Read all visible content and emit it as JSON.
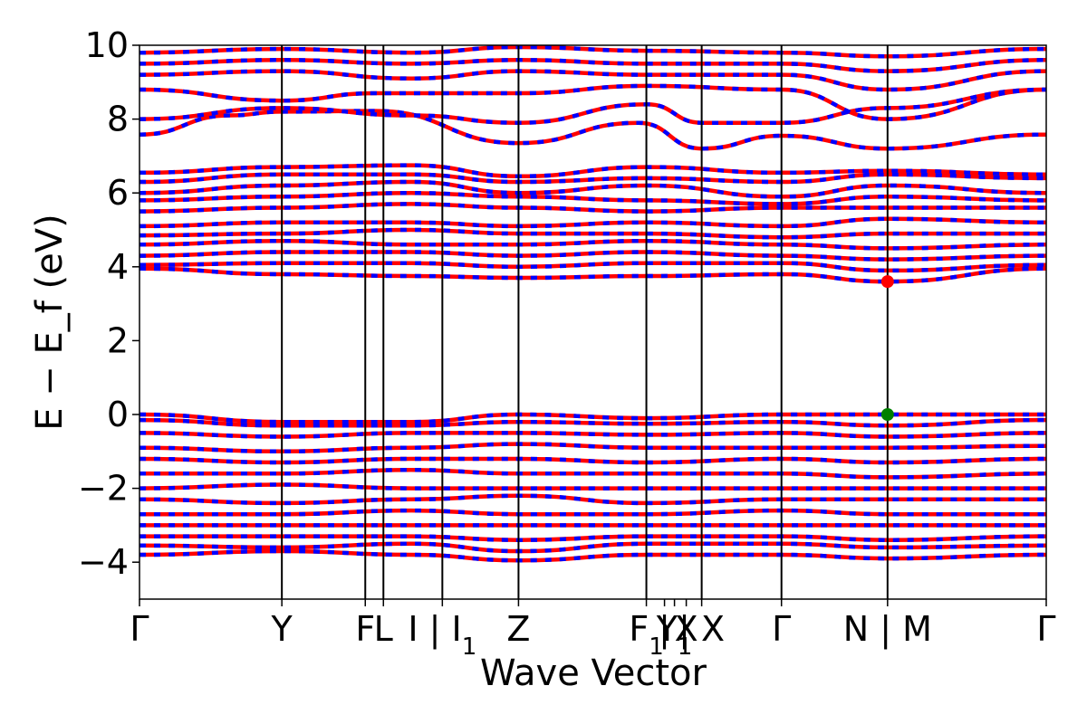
{
  "chart_data": {
    "type": "line",
    "title": "",
    "xlabel": "Wave Vector",
    "ylabel": "E − E_f (eV)",
    "ylim": [
      -5,
      10
    ],
    "yticks": [
      -4,
      -2,
      0,
      2,
      4,
      6,
      8,
      10
    ],
    "ytick_labels": [
      "−4",
      "−2",
      "0",
      "2",
      "4",
      "6",
      "8",
      "10"
    ],
    "xlim": [
      0,
      1
    ],
    "grid": false,
    "kpoints": [
      {
        "pos": 0.0,
        "label": "Γ",
        "sub": ""
      },
      {
        "pos": 0.157,
        "label": "Y",
        "sub": ""
      },
      {
        "pos": 0.249,
        "label": "F",
        "sub": ""
      },
      {
        "pos": 0.269,
        "label": "L",
        "sub": ""
      },
      {
        "pos": 0.334,
        "label": "I | I",
        "sub": "1"
      },
      {
        "pos": 0.418,
        "label": "Z",
        "sub": ""
      },
      {
        "pos": 0.559,
        "label": "F",
        "sub": "1"
      },
      {
        "pos": 0.579,
        "label": "|",
        "sub": ""
      },
      {
        "pos": 0.59,
        "label": "Y",
        "sub": "1"
      },
      {
        "pos": 0.603,
        "label": "X",
        "sub": ""
      },
      {
        "pos": 0.62,
        "label": "| X",
        "sub": ""
      },
      {
        "pos": 0.708,
        "label": "Γ",
        "sub": ""
      },
      {
        "pos": 0.825,
        "label": "N | M",
        "sub": ""
      },
      {
        "pos": 1.0,
        "label": "Γ",
        "sub": ""
      }
    ],
    "vlines": [
      0.157,
      0.249,
      0.269,
      0.334,
      0.418,
      0.559,
      0.62,
      0.708,
      0.825
    ],
    "series": [
      {
        "color": "#ff0000",
        "style": "solid"
      },
      {
        "color": "#0000ff",
        "style": "dashed"
      }
    ],
    "cbm": {
      "x": 0.825,
      "y": 3.6,
      "color": "#ff0000"
    },
    "vbm": {
      "x": 0.825,
      "y": 0.0,
      "color": "#008000"
    },
    "bands": [
      {
        "pts": [
          [
            0,
            7.58
          ],
          [
            0.1,
            8.1
          ],
          [
            0.157,
            8.2
          ],
          [
            0.26,
            8.22
          ],
          [
            0.418,
            7.35
          ],
          [
            0.55,
            7.9
          ],
          [
            0.62,
            7.2
          ],
          [
            0.708,
            7.55
          ],
          [
            0.825,
            7.2
          ],
          [
            1,
            7.58
          ]
        ]
      },
      {
        "pts": [
          [
            0,
            8.0
          ],
          [
            0.157,
            8.3
          ],
          [
            0.3,
            8.1
          ],
          [
            0.418,
            7.9
          ],
          [
            0.56,
            8.4
          ],
          [
            0.62,
            7.9
          ],
          [
            0.708,
            7.9
          ],
          [
            0.825,
            8.3
          ],
          [
            1,
            8.8
          ]
        ]
      },
      {
        "pts": [
          [
            0,
            8.8
          ],
          [
            0.157,
            8.5
          ],
          [
            0.26,
            8.7
          ],
          [
            0.418,
            8.7
          ],
          [
            0.56,
            8.9
          ],
          [
            0.708,
            8.8
          ],
          [
            0.825,
            8.0
          ],
          [
            1,
            8.8
          ]
        ]
      },
      {
        "pts": [
          [
            0,
            9.2
          ],
          [
            0.157,
            9.3
          ],
          [
            0.3,
            9.1
          ],
          [
            0.418,
            9.3
          ],
          [
            0.56,
            9.2
          ],
          [
            0.708,
            9.2
          ],
          [
            0.825,
            8.8
          ],
          [
            1,
            9.3
          ]
        ]
      },
      {
        "pts": [
          [
            0,
            9.5
          ],
          [
            0.157,
            9.6
          ],
          [
            0.3,
            9.5
          ],
          [
            0.418,
            9.6
          ],
          [
            0.56,
            9.5
          ],
          [
            0.708,
            9.5
          ],
          [
            0.825,
            9.3
          ],
          [
            1,
            9.6
          ]
        ]
      },
      {
        "pts": [
          [
            0,
            9.8
          ],
          [
            0.157,
            9.9
          ],
          [
            0.3,
            9.8
          ],
          [
            0.418,
            9.95
          ],
          [
            0.56,
            9.85
          ],
          [
            0.708,
            9.8
          ],
          [
            0.825,
            9.7
          ],
          [
            1,
            9.9
          ]
        ]
      },
      {
        "pts": [
          [
            0,
            6.55
          ],
          [
            0.157,
            6.7
          ],
          [
            0.3,
            6.75
          ],
          [
            0.418,
            6.45
          ],
          [
            0.56,
            6.7
          ],
          [
            0.708,
            6.55
          ],
          [
            0.825,
            6.6
          ],
          [
            1,
            6.5
          ]
        ]
      },
      {
        "pts": [
          [
            0,
            6.3
          ],
          [
            0.157,
            6.5
          ],
          [
            0.3,
            6.5
          ],
          [
            0.418,
            6.3
          ],
          [
            0.56,
            6.4
          ],
          [
            0.708,
            6.3
          ],
          [
            0.825,
            6.5
          ],
          [
            1,
            6.4
          ]
        ]
      },
      {
        "pts": [
          [
            0,
            6.0
          ],
          [
            0.157,
            6.2
          ],
          [
            0.3,
            6.3
          ],
          [
            0.418,
            6.0
          ],
          [
            0.56,
            6.2
          ],
          [
            0.708,
            5.9
          ],
          [
            0.825,
            6.2
          ],
          [
            1,
            6.0
          ]
        ]
      },
      {
        "pts": [
          [
            0,
            5.8
          ],
          [
            0.157,
            5.9
          ],
          [
            0.3,
            6.0
          ],
          [
            0.418,
            5.9
          ],
          [
            0.56,
            5.8
          ],
          [
            0.708,
            5.7
          ],
          [
            0.825,
            5.9
          ],
          [
            1,
            5.8
          ]
        ]
      },
      {
        "pts": [
          [
            0,
            5.5
          ],
          [
            0.157,
            5.6
          ],
          [
            0.3,
            5.7
          ],
          [
            0.418,
            5.6
          ],
          [
            0.56,
            5.5
          ],
          [
            0.708,
            5.6
          ],
          [
            0.825,
            5.6
          ],
          [
            1,
            5.6
          ]
        ]
      },
      {
        "pts": [
          [
            0,
            5.1
          ],
          [
            0.157,
            5.2
          ],
          [
            0.3,
            5.2
          ],
          [
            0.418,
            5.1
          ],
          [
            0.56,
            5.2
          ],
          [
            0.708,
            5.1
          ],
          [
            0.825,
            5.3
          ],
          [
            1,
            5.2
          ]
        ]
      },
      {
        "pts": [
          [
            0,
            4.85
          ],
          [
            0.157,
            4.9
          ],
          [
            0.3,
            5.0
          ],
          [
            0.418,
            4.9
          ],
          [
            0.56,
            4.9
          ],
          [
            0.708,
            4.8
          ],
          [
            0.825,
            4.9
          ],
          [
            1,
            4.9
          ]
        ]
      },
      {
        "pts": [
          [
            0,
            4.6
          ],
          [
            0.157,
            4.7
          ],
          [
            0.3,
            4.6
          ],
          [
            0.418,
            4.6
          ],
          [
            0.56,
            4.7
          ],
          [
            0.708,
            4.6
          ],
          [
            0.825,
            4.5
          ],
          [
            1,
            4.6
          ]
        ]
      },
      {
        "pts": [
          [
            0,
            4.3
          ],
          [
            0.157,
            4.4
          ],
          [
            0.3,
            4.4
          ],
          [
            0.418,
            4.3
          ],
          [
            0.56,
            4.4
          ],
          [
            0.708,
            4.3
          ],
          [
            0.825,
            4.2
          ],
          [
            1,
            4.3
          ]
        ]
      },
      {
        "pts": [
          [
            0,
            4.05
          ],
          [
            0.157,
            4.1
          ],
          [
            0.3,
            4.1
          ],
          [
            0.418,
            4.0
          ],
          [
            0.56,
            4.1
          ],
          [
            0.708,
            4.1
          ],
          [
            0.825,
            3.9
          ],
          [
            1,
            4.05
          ]
        ]
      },
      {
        "pts": [
          [
            0,
            3.95
          ],
          [
            0.157,
            3.8
          ],
          [
            0.3,
            3.75
          ],
          [
            0.418,
            3.7
          ],
          [
            0.56,
            3.75
          ],
          [
            0.708,
            3.8
          ],
          [
            0.825,
            3.6
          ],
          [
            1,
            3.95
          ]
        ]
      },
      {
        "pts": [
          [
            0,
            0.0
          ],
          [
            0.157,
            -0.2
          ],
          [
            0.3,
            -0.2
          ],
          [
            0.418,
            0.0
          ],
          [
            0.56,
            -0.1
          ],
          [
            0.708,
            0.0
          ],
          [
            0.825,
            0.0
          ],
          [
            1,
            0.0
          ]
        ]
      },
      {
        "pts": [
          [
            0,
            -0.15
          ],
          [
            0.157,
            -0.3
          ],
          [
            0.3,
            -0.3
          ],
          [
            0.418,
            -0.2
          ],
          [
            0.56,
            -0.25
          ],
          [
            0.708,
            -0.2
          ],
          [
            0.825,
            -0.3
          ],
          [
            1,
            -0.15
          ]
        ]
      },
      {
        "pts": [
          [
            0,
            -0.5
          ],
          [
            0.157,
            -0.6
          ],
          [
            0.3,
            -0.5
          ],
          [
            0.418,
            -0.5
          ],
          [
            0.56,
            -0.55
          ],
          [
            0.708,
            -0.5
          ],
          [
            0.825,
            -0.6
          ],
          [
            1,
            -0.5
          ]
        ]
      },
      {
        "pts": [
          [
            0,
            -0.9
          ],
          [
            0.157,
            -1.0
          ],
          [
            0.3,
            -0.9
          ],
          [
            0.418,
            -0.8
          ],
          [
            0.56,
            -0.9
          ],
          [
            0.708,
            -0.9
          ],
          [
            0.825,
            -0.9
          ],
          [
            1,
            -0.85
          ]
        ]
      },
      {
        "pts": [
          [
            0,
            -1.2
          ],
          [
            0.157,
            -1.3
          ],
          [
            0.3,
            -1.2
          ],
          [
            0.418,
            -1.2
          ],
          [
            0.56,
            -1.3
          ],
          [
            0.708,
            -1.2
          ],
          [
            0.825,
            -1.3
          ],
          [
            1,
            -1.2
          ]
        ]
      },
      {
        "pts": [
          [
            0,
            -1.6
          ],
          [
            0.157,
            -1.6
          ],
          [
            0.3,
            -1.5
          ],
          [
            0.418,
            -1.6
          ],
          [
            0.56,
            -1.6
          ],
          [
            0.708,
            -1.6
          ],
          [
            0.825,
            -1.7
          ],
          [
            1,
            -1.6
          ]
        ]
      },
      {
        "pts": [
          [
            0,
            -2.0
          ],
          [
            0.157,
            -1.9
          ],
          [
            0.3,
            -2.0
          ],
          [
            0.418,
            -2.0
          ],
          [
            0.56,
            -2.0
          ],
          [
            0.708,
            -2.0
          ],
          [
            0.825,
            -2.0
          ],
          [
            1,
            -2.0
          ]
        ]
      },
      {
        "pts": [
          [
            0,
            -2.3
          ],
          [
            0.157,
            -2.4
          ],
          [
            0.3,
            -2.3
          ],
          [
            0.418,
            -2.2
          ],
          [
            0.56,
            -2.4
          ],
          [
            0.708,
            -2.3
          ],
          [
            0.825,
            -2.3
          ],
          [
            1,
            -2.3
          ]
        ]
      },
      {
        "pts": [
          [
            0,
            -2.7
          ],
          [
            0.157,
            -2.7
          ],
          [
            0.3,
            -2.6
          ],
          [
            0.418,
            -2.7
          ],
          [
            0.56,
            -2.7
          ],
          [
            0.708,
            -2.6
          ],
          [
            0.825,
            -2.7
          ],
          [
            1,
            -2.7
          ]
        ]
      },
      {
        "pts": [
          [
            0,
            -3.0
          ],
          [
            0.157,
            -3.0
          ],
          [
            0.3,
            -3.0
          ],
          [
            0.418,
            -3.0
          ],
          [
            0.56,
            -3.0
          ],
          [
            0.708,
            -3.0
          ],
          [
            0.825,
            -3.0
          ],
          [
            1,
            -3.0
          ]
        ]
      },
      {
        "pts": [
          [
            0,
            -3.3
          ],
          [
            0.157,
            -3.3
          ],
          [
            0.3,
            -3.3
          ],
          [
            0.418,
            -3.4
          ],
          [
            0.56,
            -3.3
          ],
          [
            0.708,
            -3.3
          ],
          [
            0.825,
            -3.4
          ],
          [
            1,
            -3.3
          ]
        ]
      },
      {
        "pts": [
          [
            0,
            -3.55
          ],
          [
            0.157,
            -3.6
          ],
          [
            0.3,
            -3.5
          ],
          [
            0.418,
            -3.7
          ],
          [
            0.56,
            -3.5
          ],
          [
            0.708,
            -3.5
          ],
          [
            0.825,
            -3.6
          ],
          [
            1,
            -3.55
          ]
        ]
      },
      {
        "pts": [
          [
            0,
            -3.8
          ],
          [
            0.157,
            -3.7
          ],
          [
            0.3,
            -3.8
          ],
          [
            0.418,
            -3.95
          ],
          [
            0.56,
            -3.8
          ],
          [
            0.708,
            -3.8
          ],
          [
            0.825,
            -3.9
          ],
          [
            1,
            -3.8
          ]
        ]
      }
    ]
  }
}
